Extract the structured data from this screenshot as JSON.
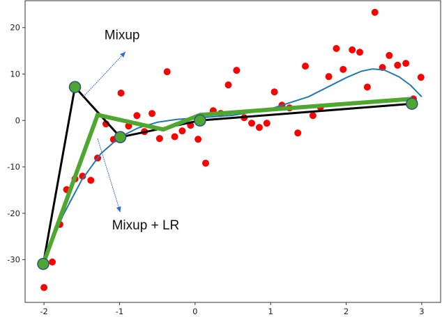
{
  "chart_data": {
    "type": "scatter",
    "title": "",
    "xlabel": "",
    "ylabel": "",
    "xlim": [
      -2.25,
      3.25
    ],
    "ylim": [
      -39.2,
      25.8
    ],
    "xticks": [
      "-2",
      "-1",
      "0",
      "1",
      "2",
      "3"
    ],
    "yticks": [
      "20",
      "10",
      "0",
      "-10",
      "-20",
      "-30"
    ],
    "grid": false,
    "colors": {
      "points": "#ff0000",
      "fit": "#1f77b4",
      "mixup": "#000000",
      "mixup_lr": "#4ea72e",
      "nodes": "#4ea72e",
      "node_edge": "#2f4f8f",
      "arrow": "#2e6fd0"
    },
    "points": [
      [
        -2.0,
        -36.0
      ],
      [
        -1.89,
        -30.5
      ],
      [
        -1.79,
        -22.4
      ],
      [
        -1.7,
        -14.9
      ],
      [
        -1.59,
        -12.6
      ],
      [
        -1.49,
        -12.0
      ],
      [
        -1.38,
        -12.9
      ],
      [
        -1.29,
        -8.1
      ],
      [
        -1.18,
        -0.75
      ],
      [
        -1.08,
        -4.1
      ],
      [
        -0.98,
        5.9
      ],
      [
        -0.88,
        -1.2
      ],
      [
        -0.77,
        1.05
      ],
      [
        -0.67,
        -2.4
      ],
      [
        -0.57,
        1.5
      ],
      [
        -0.47,
        -3.9
      ],
      [
        -0.37,
        10.5
      ],
      [
        -0.27,
        -3.5
      ],
      [
        -0.17,
        -2.25
      ],
      [
        -0.06,
        -1.05
      ],
      [
        0.04,
        -4.05
      ],
      [
        0.14,
        -9.2
      ],
      [
        0.24,
        2.1
      ],
      [
        0.34,
        1.5
      ],
      [
        0.44,
        7.65
      ],
      [
        0.55,
        10.8
      ],
      [
        0.65,
        0.6
      ],
      [
        0.75,
        -0.6
      ],
      [
        0.85,
        -1.5
      ],
      [
        0.95,
        -0.6
      ],
      [
        1.05,
        6.15
      ],
      [
        1.15,
        3.3
      ],
      [
        1.25,
        2.7
      ],
      [
        1.36,
        -2.7
      ],
      [
        1.46,
        11.7
      ],
      [
        1.56,
        1.05
      ],
      [
        1.66,
        2.85
      ],
      [
        1.77,
        9.45
      ],
      [
        1.87,
        15.5
      ],
      [
        1.96,
        11.0
      ],
      [
        2.08,
        15.2
      ],
      [
        2.18,
        14.7
      ],
      [
        2.28,
        7.2
      ],
      [
        2.38,
        23.3
      ],
      [
        2.48,
        11.4
      ],
      [
        2.57,
        14.0
      ],
      [
        2.68,
        11.9
      ],
      [
        2.79,
        12.3
      ],
      [
        2.89,
        4.65
      ],
      [
        2.99,
        9.3
      ]
    ],
    "fit_curve": [
      [
        -2.0,
        -30.5
      ],
      [
        -1.75,
        -20.5
      ],
      [
        -1.5,
        -12.8
      ],
      [
        -1.25,
        -7.2
      ],
      [
        -1.0,
        -3.6
      ],
      [
        -0.75,
        -1.6
      ],
      [
        -0.5,
        -0.4
      ],
      [
        -0.25,
        0.2
      ],
      [
        0.0,
        0.5
      ],
      [
        0.5,
        1.1
      ],
      [
        1.0,
        2.5
      ],
      [
        1.5,
        5.1
      ],
      [
        2.0,
        9.2
      ],
      [
        2.2,
        10.6
      ],
      [
        2.35,
        11.1
      ],
      [
        2.5,
        10.9
      ],
      [
        2.7,
        9.4
      ],
      [
        2.85,
        7.6
      ],
      [
        3.0,
        5.1
      ]
    ],
    "mixup_line": [
      [
        -2.01,
        -30.9
      ],
      [
        -1.59,
        7.2
      ],
      [
        -0.99,
        -3.6
      ],
      [
        0.065,
        0.0
      ],
      [
        2.87,
        3.6
      ]
    ],
    "mixup_lr_line": [
      [
        -2.01,
        -30.9
      ],
      [
        -1.29,
        1.2
      ],
      [
        -0.42,
        -1.95
      ],
      [
        0.065,
        1.2
      ],
      [
        2.87,
        4.65
      ]
    ],
    "nodes": [
      [
        -2.01,
        -30.9
      ],
      [
        -1.59,
        7.2
      ],
      [
        -0.99,
        -3.6
      ],
      [
        0.065,
        0.0
      ],
      [
        2.87,
        3.6
      ]
    ],
    "arrows": [
      {
        "from": [
          -1.48,
          5.1
        ],
        "to": [
          -0.92,
          14.8
        ]
      },
      {
        "from": [
          -1.29,
          -3.9
        ],
        "to": [
          -0.99,
          -19.8
        ]
      }
    ],
    "annotations": [
      {
        "text": "Mixup",
        "at": [
          -1.2,
          17.5
        ]
      },
      {
        "text": "Mixup + LR",
        "at": [
          -1.1,
          -23.5
        ]
      }
    ]
  }
}
